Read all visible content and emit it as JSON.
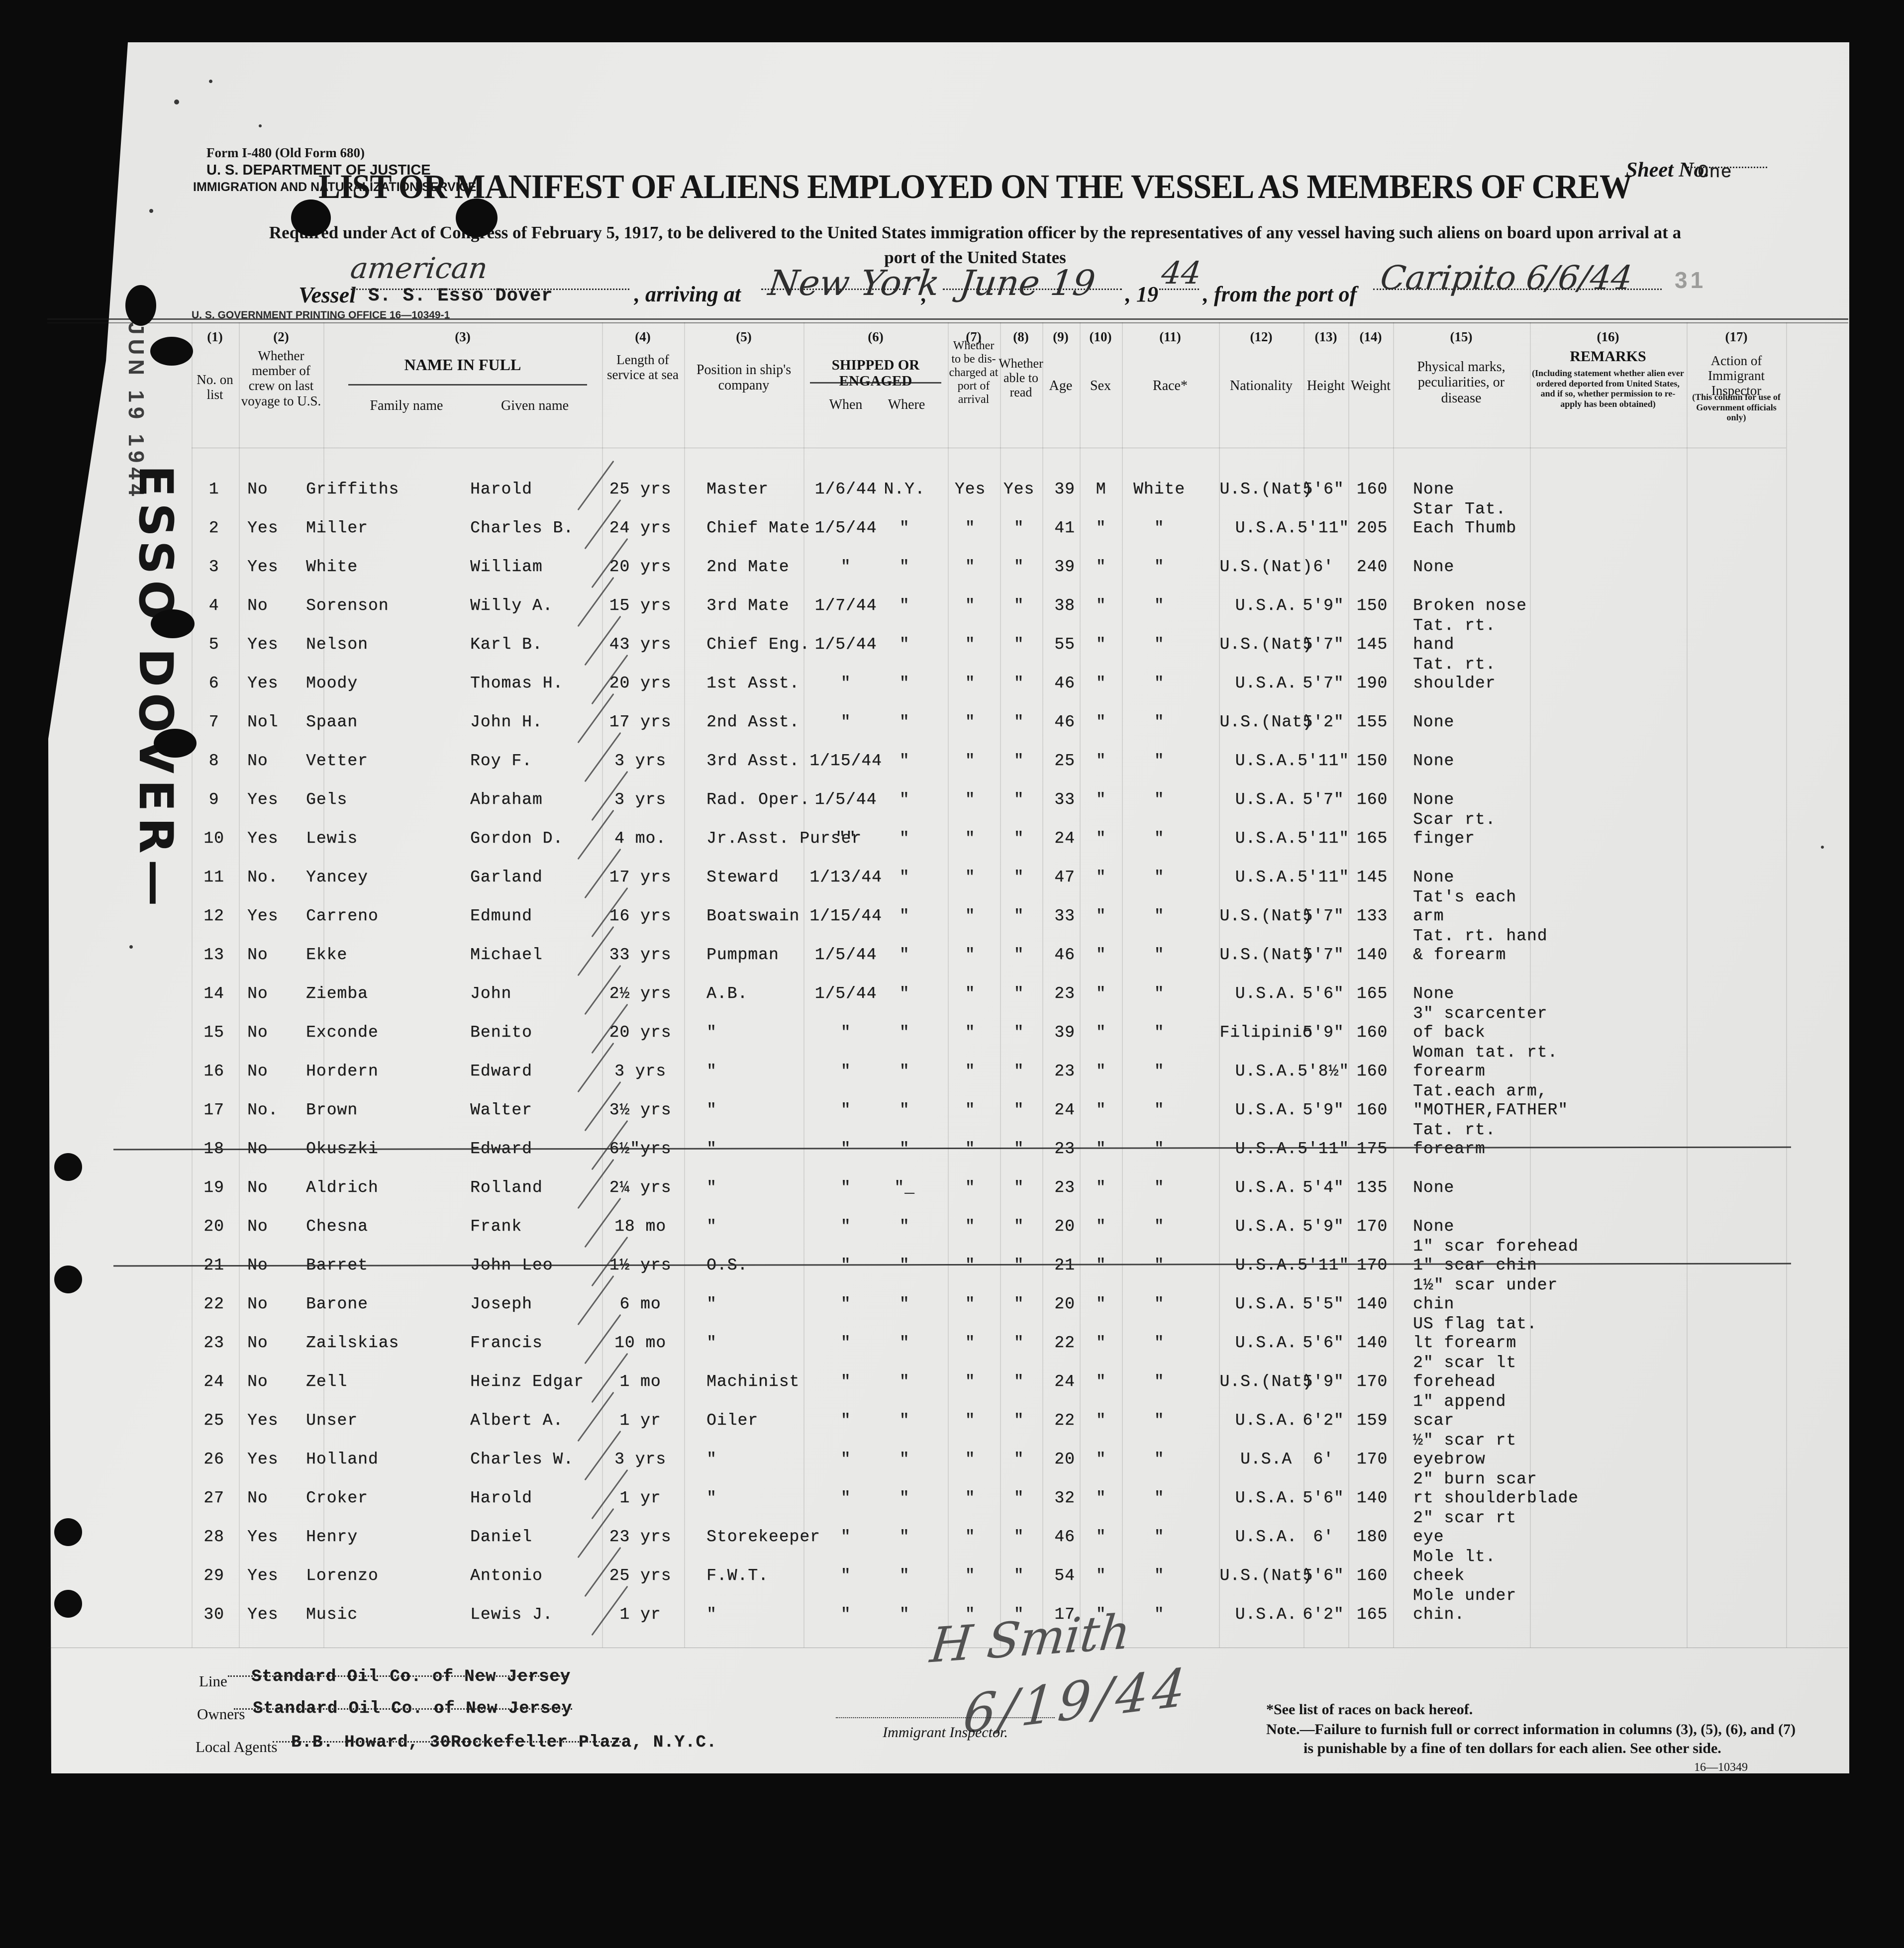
{
  "form": {
    "form_number": "Form I-480 (Old Form 680)",
    "agency_line1": "U. S. DEPARTMENT OF JUSTICE",
    "agency_line2": "IMMIGRATION AND NATURALIZATION SERVICE",
    "sheet_no_label": "Sheet No.",
    "sheet_no_value": "One",
    "title": "LIST OR MANIFEST OF ALIENS EMPLOYED ON THE VESSEL AS MEMBERS OF CREW",
    "subtitle_line1": "Required under Act of Congress of February 5, 1917, to be delivered to the United States immigration officer by the representatives of any vessel having such aliens on board upon arrival at a",
    "subtitle_line2": "port of the United States",
    "printing_office": "U. S. GOVERNMENT PRINTING OFFICE      16—10349-1",
    "faint_stamp": "31"
  },
  "margin": {
    "date_stamp": "JUN 19 1944",
    "vessel_note": "ESSO DOVER—"
  },
  "vessel_line": {
    "nationality_handwritten": "american",
    "vessel_label": "Vessel",
    "vessel_name": "S. S. Esso Dover",
    "arriving_label": ", arriving at",
    "arrival_port": "New York",
    "comma": ",",
    "arrival_date": "June 19",
    "year_printed": ", 19",
    "year_written": "44",
    "from_port_label": ", from the port of",
    "from_port": "Caripito 6/6/44"
  },
  "table": {
    "columns": [
      {
        "num": "(1)",
        "label": "No. on list"
      },
      {
        "num": "(2)",
        "label": "Whether member of crew on last voyage to U.S."
      },
      {
        "num": "(3)",
        "label": "NAME IN FULL",
        "sub1": "Family name",
        "sub2": "Given name"
      },
      {
        "num": "(4)",
        "label": "Length of service at sea"
      },
      {
        "num": "(5)",
        "label": "Position in ship's company"
      },
      {
        "num": "(6)",
        "label": "SHIPPED OR ENGAGED",
        "sub1": "When",
        "sub2": "Where"
      },
      {
        "num": "(7)",
        "label": "Whether to be dis- charged at port of arrival"
      },
      {
        "num": "(8)",
        "label": "Whether able to read"
      },
      {
        "num": "(9)",
        "label": "Age"
      },
      {
        "num": "(10)",
        "label": "Sex"
      },
      {
        "num": "(11)",
        "label": "Race*"
      },
      {
        "num": "(12)",
        "label": "Nationality"
      },
      {
        "num": "(13)",
        "label": "Height"
      },
      {
        "num": "(14)",
        "label": "Weight"
      },
      {
        "num": "(15)",
        "label": "Physical marks, peculiarities, or disease"
      },
      {
        "num": "(16)",
        "label": "REMARKS",
        "note": "(Including statement whether alien ever ordered deported from United States, and if so, whether permission to re- apply has been obtained)"
      },
      {
        "num": "(17)",
        "label": "Action of Immigrant Inspector",
        "note": "(This column for use of Government officials only)"
      }
    ]
  },
  "rows": [
    {
      "n": "1",
      "c": "No",
      "f": "Griffiths",
      "g": "Harold",
      "sv": "25 yrs",
      "p": "Master",
      "w": "1/6/44",
      "wh": "N.Y.",
      "d": "Yes",
      "r": "Yes",
      "a": "39",
      "s": "M",
      "rc": "White",
      "nt": "U.S.(Nat)",
      "h": "5'6\"",
      "wt": "160",
      "m": "None"
    },
    {
      "n": "2",
      "c": "Yes",
      "f": "Miller",
      "g": "Charles B.",
      "sv": "24 yrs",
      "p": "Chief Mate",
      "w": "1/5/44",
      "wh": "\"",
      "d": "\"",
      "r": "\"",
      "a": "41",
      "s": "\"",
      "rc": "\"",
      "nt": "U.S.A.",
      "h": "5'11\"",
      "wt": "205",
      "m": "Star Tat.\nEach Thumb"
    },
    {
      "n": "3",
      "c": "Yes",
      "f": "White",
      "g": "William",
      "sv": "20 yrs",
      "p": "2nd Mate",
      "w": "\"",
      "wh": "\"",
      "d": "\"",
      "r": "\"",
      "a": "39",
      "s": "\"",
      "rc": "\"",
      "nt": "U.S.(Nat)",
      "h": "6'",
      "wt": "240",
      "m": "None"
    },
    {
      "n": "4",
      "c": "No",
      "f": "Sorenson",
      "g": "Willy A.",
      "sv": "15 yrs",
      "p": "3rd Mate",
      "w": "1/7/44",
      "wh": "\"",
      "d": "\"",
      "r": "\"",
      "a": "38",
      "s": "\"",
      "rc": "\"",
      "nt": "U.S.A.",
      "h": "5'9\"",
      "wt": "150",
      "m": "Broken nose"
    },
    {
      "n": "5",
      "c": "Yes",
      "f": "Nelson",
      "g": "Karl B.",
      "sv": "43 yrs",
      "p": "Chief Eng.",
      "w": "1/5/44",
      "wh": "\"",
      "d": "\"",
      "r": "\"",
      "a": "55",
      "s": "\"",
      "rc": "\"",
      "nt": "U.S.(Nat)",
      "h": "5'7\"",
      "wt": "145",
      "m": "Tat. rt.\nhand"
    },
    {
      "n": "6",
      "c": "Yes",
      "f": "Moody",
      "g": "Thomas H.",
      "sv": "20 yrs",
      "p": "1st Asst.",
      "w": "\"",
      "wh": "\"",
      "d": "\"",
      "r": "\"",
      "a": "46",
      "s": "\"",
      "rc": "\"",
      "nt": "U.S.A.",
      "h": "5'7\"",
      "wt": "190",
      "m": "Tat. rt.\nshoulder"
    },
    {
      "n": "7",
      "c": "Nol",
      "f": "Spaan",
      "g": "John H.",
      "sv": "17 yrs",
      "p": "2nd Asst.",
      "w": "\"",
      "wh": "\"",
      "d": "\"",
      "r": "\"",
      "a": "46",
      "s": "\"",
      "rc": "\"",
      "nt": "U.S.(Nat)",
      "h": "5'2\"",
      "wt": "155",
      "m": "None"
    },
    {
      "n": "8",
      "c": "No",
      "f": "Vetter",
      "g": "Roy F.",
      "sv": "3 yrs",
      "p": "3rd Asst.",
      "w": "1/15/44",
      "wh": "\"",
      "d": "\"",
      "r": "\"",
      "a": "25",
      "s": "\"",
      "rc": "\"",
      "nt": "U.S.A.",
      "h": "5'11\"",
      "wt": "150",
      "m": "None"
    },
    {
      "n": "9",
      "c": "Yes",
      "f": "Gels",
      "g": "Abraham",
      "sv": "3 yrs",
      "p": "Rad. Oper.",
      "w": "1/5/44",
      "wh": "\"",
      "d": "\"",
      "r": "\"",
      "a": "33",
      "s": "\"",
      "rc": "\"",
      "nt": "U.S.A.",
      "h": "5'7\"",
      "wt": "160",
      "m": "None"
    },
    {
      "n": "10",
      "c": "Yes",
      "f": "Lewis",
      "g": "Gordon D.",
      "sv": "4 mo.",
      "p": "Jr.Asst. Purser",
      "w": "\"\"",
      "wh": "\"",
      "d": "\"",
      "r": "\"",
      "a": "24",
      "s": "\"",
      "rc": "\"",
      "nt": "U.S.A.",
      "h": "5'11\"",
      "wt": "165",
      "m": "Scar rt.\nfinger"
    },
    {
      "n": "11",
      "c": "No.",
      "f": "Yancey",
      "g": "Garland",
      "sv": "17 yrs",
      "p": "Steward",
      "w": "1/13/44",
      "wh": "\"",
      "d": "\"",
      "r": "\"",
      "a": "47",
      "s": "\"",
      "rc": "\"",
      "nt": "U.S.A.",
      "h": "5'11\"",
      "wt": "145",
      "m": "None"
    },
    {
      "n": "12",
      "c": "Yes",
      "f": "Carreno",
      "g": "Edmund",
      "sv": "16 yrs",
      "p": "Boatswain",
      "w": "1/15/44",
      "wh": "\"",
      "d": "\"",
      "r": "\"",
      "a": "33",
      "s": "\"",
      "rc": "\"",
      "nt": "U.S.(Nat)",
      "h": "5'7\"",
      "wt": "133",
      "m": "Tat's each\narm"
    },
    {
      "n": "13",
      "c": "No",
      "f": "Ekke",
      "g": "Michael",
      "sv": "33 yrs",
      "p": "Pumpman",
      "w": "1/5/44",
      "wh": "\"",
      "d": "\"",
      "r": "\"",
      "a": "46",
      "s": "\"",
      "rc": "\"",
      "nt": "U.S.(Nat)",
      "h": "5'7\"",
      "wt": "140",
      "m": "Tat. rt. hand\n& forearm"
    },
    {
      "n": "14",
      "c": "No",
      "f": "Ziemba",
      "g": "John",
      "sv": "2½ yrs",
      "p": "A.B.",
      "w": "1/5/44",
      "wh": "\"",
      "d": "\"",
      "r": "\"",
      "a": "23",
      "s": "\"",
      "rc": "\"",
      "nt": "U.S.A.",
      "h": "5'6\"",
      "wt": "165",
      "m": "None"
    },
    {
      "n": "15",
      "c": "No",
      "f": "Exconde",
      "g": "Benito",
      "sv": "20 yrs",
      "p": "\"",
      "w": "\"",
      "wh": "\"",
      "d": "\"",
      "r": "\"",
      "a": "39",
      "s": "\"",
      "rc": "\"",
      "nt": "Filipinio",
      "h": "5'9\"",
      "wt": "160",
      "m": "3\" scarcenter\nof back"
    },
    {
      "n": "16",
      "c": "No",
      "f": "Hordern",
      "g": "Edward",
      "sv": "3 yrs",
      "p": "\"",
      "w": "\"",
      "wh": "\"",
      "d": "\"",
      "r": "\"",
      "a": "23",
      "s": "\"",
      "rc": "\"",
      "nt": "U.S.A.",
      "h": "5'8½\"",
      "wt": "160",
      "m": "Woman tat. rt.\nforearm"
    },
    {
      "n": "17",
      "c": "No.",
      "f": "Brown",
      "g": "Walter",
      "sv": "3½ yrs",
      "p": "\"",
      "w": "\"",
      "wh": "\"",
      "d": "\"",
      "r": "\"",
      "a": "24",
      "s": "\"",
      "rc": "\"",
      "nt": "U.S.A.",
      "h": "5'9\"",
      "wt": "160",
      "m": "Tat.each arm,\n\"MOTHER,FATHER\""
    },
    {
      "n": "18",
      "c": "No",
      "f": "Okuszki",
      "g": "Edward",
      "sv": "6½\"yrs",
      "p": "\"",
      "w": "\"",
      "wh": "\"",
      "d": "\"",
      "r": "\"",
      "a": "23",
      "s": "\"",
      "rc": "\"",
      "nt": "U.S.A.",
      "h": "5'11\"",
      "wt": "175",
      "m": "Tat. rt.\nforearm",
      "struck": true
    },
    {
      "n": "19",
      "c": "No",
      "f": "Aldrich",
      "g": "Rolland",
      "sv": "2¼ yrs",
      "p": "\"",
      "w": "\"",
      "wh": "\"_",
      "d": "\"",
      "r": "\"",
      "a": "23",
      "s": "\"",
      "rc": "\"",
      "nt": "U.S.A.",
      "h": "5'4\"",
      "wt": "135",
      "m": "None"
    },
    {
      "n": "20",
      "c": "No",
      "f": "Chesna",
      "g": "Frank",
      "sv": "18 mo",
      "p": "\"",
      "w": "\"",
      "wh": "\"",
      "d": "\"",
      "r": "\"",
      "a": "20",
      "s": "\"",
      "rc": "\"",
      "nt": "U.S.A.",
      "h": "5'9\"",
      "wt": "170",
      "m": "None"
    },
    {
      "n": "21",
      "c": "No",
      "f": "Barret",
      "g": "John Leo",
      "sv": "1½ yrs",
      "p": "O.S.",
      "w": "\"",
      "wh": "\"",
      "d": "\"",
      "r": "\"",
      "a": "21",
      "s": "\"",
      "rc": "\"",
      "nt": "U.S.A.",
      "h": "5'11\"",
      "wt": "170",
      "m": "1\" scar forehead\n1\" scar chin",
      "struck": true
    },
    {
      "n": "22",
      "c": "No",
      "f": "Barone",
      "g": "Joseph",
      "sv": "6 mo",
      "p": "\"",
      "w": "\"",
      "wh": "\"",
      "d": "\"",
      "r": "\"",
      "a": "20",
      "s": "\"",
      "rc": "\"",
      "nt": "U.S.A.",
      "h": "5'5\"",
      "wt": "140",
      "m": "1½\" scar under\nchin"
    },
    {
      "n": "23",
      "c": "No",
      "f": "Zailskias",
      "g": "Francis",
      "sv": "10 mo",
      "p": "\"",
      "w": "\"",
      "wh": "\"",
      "d": "\"",
      "r": "\"",
      "a": "22",
      "s": "\"",
      "rc": "\"",
      "nt": "U.S.A.",
      "h": "5'6\"",
      "wt": "140",
      "m": "US flag tat.\nlt forearm"
    },
    {
      "n": "24",
      "c": "No",
      "f": "Zell",
      "g": "Heinz Edgar",
      "sv": "1 mo",
      "p": "Machinist",
      "w": "\"",
      "wh": "\"",
      "d": "\"",
      "r": "\"",
      "a": "24",
      "s": "\"",
      "rc": "\"",
      "nt": "U.S.(Nat)",
      "h": "5'9\"",
      "wt": "170",
      "m": "2\" scar lt\nforehead"
    },
    {
      "n": "25",
      "c": "Yes",
      "f": "Unser",
      "g": "Albert A.",
      "sv": "1 yr",
      "p": "Oiler",
      "w": "\"",
      "wh": "\"",
      "d": "\"",
      "r": "\"",
      "a": "22",
      "s": "\"",
      "rc": "\"",
      "nt": "U.S.A.",
      "h": "6'2\"",
      "wt": "159",
      "m": "1\" append\nscar"
    },
    {
      "n": "26",
      "c": "Yes",
      "f": "Holland",
      "g": "Charles W.",
      "sv": "3 yrs",
      "p": "\"",
      "w": "\"",
      "wh": "\"",
      "d": "\"",
      "r": "\"",
      "a": "20",
      "s": "\"",
      "rc": "\"",
      "nt": "U.S.A",
      "h": "6'",
      "wt": "170",
      "m": "½\" scar rt\neyebrow"
    },
    {
      "n": "27",
      "c": "No",
      "f": "Croker",
      "g": "Harold",
      "sv": "1 yr",
      "p": "\"",
      "w": "\"",
      "wh": "\"",
      "d": "\"",
      "r": "\"",
      "a": "32",
      "s": "\"",
      "rc": "\"",
      "nt": "U.S.A.",
      "h": "5'6\"",
      "wt": "140",
      "m": "2\" burn scar\nrt shoulderblade"
    },
    {
      "n": "28",
      "c": "Yes",
      "f": "Henry",
      "g": "Daniel",
      "sv": "23 yrs",
      "p": "Storekeeper",
      "w": "\"",
      "wh": "\"",
      "d": "\"",
      "r": "\"",
      "a": "46",
      "s": "\"",
      "rc": "\"",
      "nt": "U.S.A.",
      "h": "6'",
      "wt": "180",
      "m": "2\" scar rt\neye"
    },
    {
      "n": "29",
      "c": "Yes",
      "f": "Lorenzo",
      "g": "Antonio",
      "sv": "25 yrs",
      "p": "F.W.T.",
      "w": "\"",
      "wh": "\"",
      "d": "\"",
      "r": "\"",
      "a": "54",
      "s": "\"",
      "rc": "\"",
      "nt": "U.S.(Nat)",
      "h": "5'6\"",
      "wt": "160",
      "m": "Mole lt.\ncheek"
    },
    {
      "n": "30",
      "c": "Yes",
      "f": "Music",
      "g": "Lewis J.",
      "sv": "1 yr",
      "p": "\"",
      "w": "\"",
      "wh": "\"",
      "d": "\"",
      "r": "\"",
      "a": "17",
      "s": "\"",
      "rc": "\"",
      "nt": "U.S.A.",
      "h": "6'2\"",
      "wt": "165",
      "m": "Mole under\nchin."
    }
  ],
  "footer": {
    "line_label": "Line",
    "line_value": "Standard Oil Co. of New Jersey",
    "owners_label": "Owners",
    "owners_value": "Standard Oil Co. of New Jersey",
    "agents_label": "Local Agents",
    "agents_value": "B.B. Howard, 30Rockefeller Plaza, N.Y.C.",
    "inspector_label": "Immigrant Inspector.",
    "signature": "H Smith",
    "signature_date": "6/19/44",
    "races_note": "*See list of races on back hereof.",
    "note_line1": "Note.—Failure to furnish full or correct information in columns (3), (5), (6), and (7)",
    "note_line2": "is punishable by a fine of ten dollars for each alien.   See other side.",
    "print_code": "16—10349"
  }
}
